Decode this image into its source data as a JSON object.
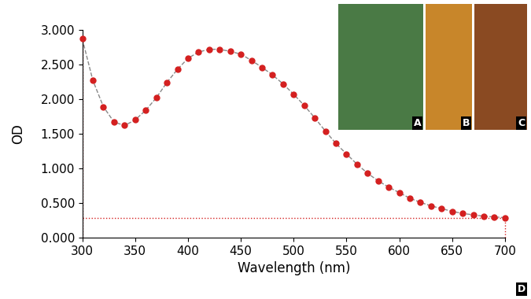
{
  "chart_data": {
    "type": "line",
    "x_label": "Wavelength (nm)",
    "y_label": "OD",
    "x": [
      300,
      310,
      320,
      330,
      340,
      350,
      360,
      370,
      380,
      390,
      400,
      410,
      420,
      430,
      440,
      450,
      460,
      470,
      480,
      490,
      500,
      510,
      520,
      530,
      540,
      550,
      560,
      570,
      580,
      590,
      600,
      610,
      620,
      630,
      640,
      650,
      660,
      670,
      680,
      690,
      700
    ],
    "values": [
      2.87,
      2.27,
      1.89,
      1.67,
      1.62,
      1.7,
      1.84,
      2.02,
      2.24,
      2.43,
      2.59,
      2.68,
      2.72,
      2.72,
      2.69,
      2.65,
      2.56,
      2.46,
      2.35,
      2.22,
      2.07,
      1.91,
      1.73,
      1.54,
      1.36,
      1.21,
      1.06,
      0.93,
      0.82,
      0.73,
      0.65,
      0.57,
      0.51,
      0.46,
      0.42,
      0.38,
      0.35,
      0.33,
      0.31,
      0.3,
      0.29
    ],
    "color": "#d42020",
    "marker": "circle",
    "line_style": "dashed",
    "xlim": [
      300,
      700
    ],
    "xticks": [
      300,
      350,
      400,
      450,
      500,
      550,
      600,
      650,
      700
    ],
    "ylim": [
      0,
      3
    ],
    "yticks": [
      {
        "value": 0,
        "label": "0.000"
      },
      {
        "value": 0.5,
        "label": "0.500"
      },
      {
        "value": 1,
        "label": "1.000"
      },
      {
        "value": 1.5,
        "label": "1.500"
      },
      {
        "value": 2,
        "label": "2.000"
      },
      {
        "value": 2.5,
        "label": "2.500"
      },
      {
        "value": 3,
        "label": "3.000"
      }
    ],
    "grid": false,
    "panel_labels": [
      "A",
      "B",
      "C",
      "D"
    ]
  }
}
